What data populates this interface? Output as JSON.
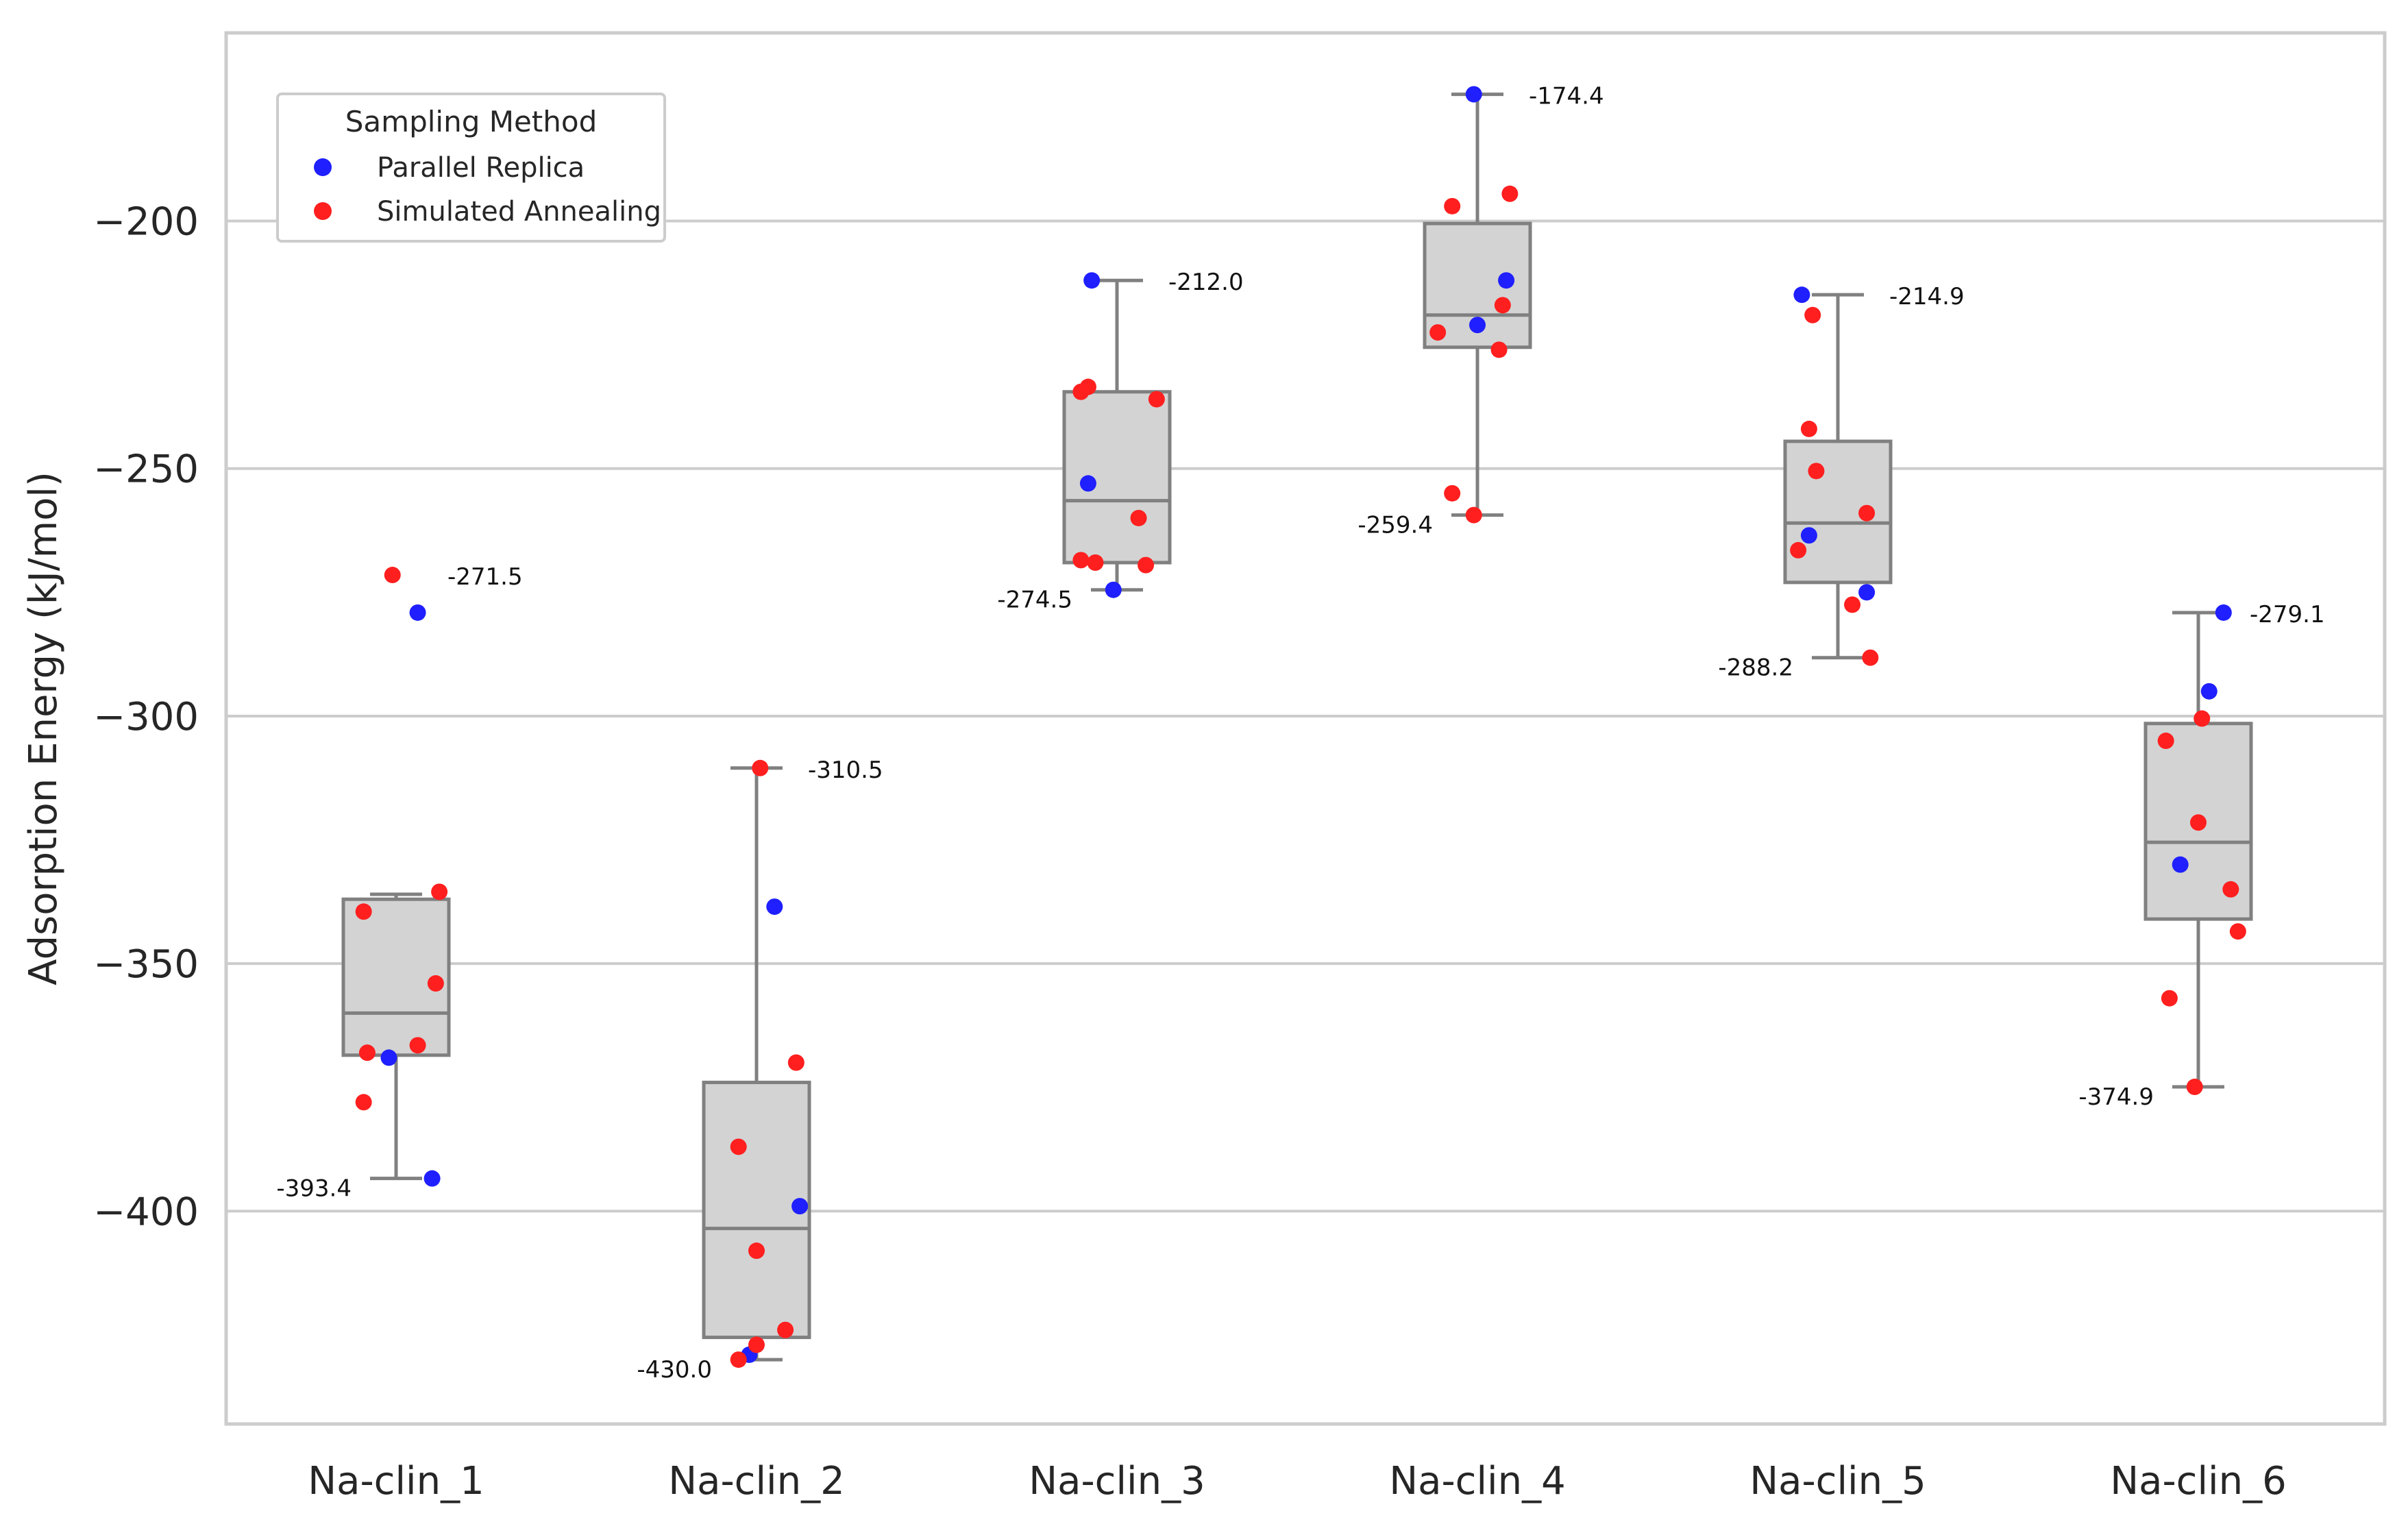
{
  "chart_data": {
    "type": "box",
    "title": "",
    "xlabel": "",
    "ylabel": "Adsorption Energy (kJ/mol)",
    "ylim": [
      -443,
      -162
    ],
    "yticks": [
      -200,
      -250,
      -300,
      -350,
      -400
    ],
    "ytick_labels": [
      "−200",
      "−250",
      "−300",
      "−350",
      "−400"
    ],
    "grid": "horizontal",
    "legend": {
      "title": "Sampling Method",
      "placement": "top-left",
      "entries": [
        {
          "name": "Parallel Replica",
          "color": "#1f1fff"
        },
        {
          "name": "Simulated Annealing",
          "color": "#ff1f1f"
        }
      ]
    },
    "categories": [
      "Na-clin_1",
      "Na-clin_2",
      "Na-clin_3",
      "Na-clin_4",
      "Na-clin_5",
      "Na-clin_6"
    ],
    "boxes": [
      {
        "category": "Na-clin_1",
        "q1": -368.5,
        "median": -360.0,
        "q3": -337.0,
        "whisker_low": -393.4,
        "whisker_high": -336.0,
        "max_label": "-271.5",
        "min_label": "-393.4"
      },
      {
        "category": "Na-clin_2",
        "q1": -425.5,
        "median": -403.5,
        "q3": -374.0,
        "whisker_low": -430.0,
        "whisker_high": -310.5,
        "max_label": "-310.5",
        "min_label": "-430.0"
      },
      {
        "category": "Na-clin_3",
        "q1": -269.0,
        "median": -256.5,
        "q3": -234.5,
        "whisker_low": -274.5,
        "whisker_high": -212.0,
        "max_label": "-212.0",
        "min_label": "-274.5"
      },
      {
        "category": "Na-clin_4",
        "q1": -225.5,
        "median": -219.0,
        "q3": -200.5,
        "whisker_low": -259.4,
        "whisker_high": -174.4,
        "max_label": "-174.4",
        "min_label": "-259.4"
      },
      {
        "category": "Na-clin_5",
        "q1": -273.0,
        "median": -261.0,
        "q3": -244.5,
        "whisker_low": -288.2,
        "whisker_high": -214.9,
        "max_label": "-214.9",
        "min_label": "-288.2"
      },
      {
        "category": "Na-clin_6",
        "q1": -341.0,
        "median": -325.5,
        "q3": -301.5,
        "whisker_low": -374.9,
        "whisker_high": -279.1,
        "max_label": "-279.1",
        "min_label": "-374.9"
      }
    ],
    "series": [
      {
        "name": "Parallel Replica",
        "color": "#1f1fff",
        "points": [
          {
            "category": "Na-clin_1",
            "offset": 0.06,
            "value": -279.1
          },
          {
            "category": "Na-clin_1",
            "offset": -0.02,
            "value": -369.0
          },
          {
            "category": "Na-clin_1",
            "offset": 0.1,
            "value": -393.4
          },
          {
            "category": "Na-clin_2",
            "offset": 0.05,
            "value": -338.5
          },
          {
            "category": "Na-clin_2",
            "offset": 0.12,
            "value": -399.0
          },
          {
            "category": "Na-clin_2",
            "offset": -0.02,
            "value": -429.0
          },
          {
            "category": "Na-clin_3",
            "offset": -0.07,
            "value": -212.0
          },
          {
            "category": "Na-clin_3",
            "offset": -0.08,
            "value": -253.0
          },
          {
            "category": "Na-clin_3",
            "offset": -0.01,
            "value": -274.5
          },
          {
            "category": "Na-clin_4",
            "offset": -0.01,
            "value": -174.4
          },
          {
            "category": "Na-clin_4",
            "offset": 0.08,
            "value": -212.0
          },
          {
            "category": "Na-clin_4",
            "offset": 0.0,
            "value": -221.0
          },
          {
            "category": "Na-clin_5",
            "offset": -0.1,
            "value": -214.9
          },
          {
            "category": "Na-clin_5",
            "offset": -0.08,
            "value": -263.5
          },
          {
            "category": "Na-clin_5",
            "offset": 0.08,
            "value": -275.0
          },
          {
            "category": "Na-clin_6",
            "offset": 0.07,
            "value": -279.1
          },
          {
            "category": "Na-clin_6",
            "offset": 0.03,
            "value": -295.0
          },
          {
            "category": "Na-clin_6",
            "offset": -0.05,
            "value": -330.0
          }
        ]
      },
      {
        "name": "Simulated Annealing",
        "color": "#ff1f1f",
        "points": [
          {
            "category": "Na-clin_1",
            "offset": -0.01,
            "value": -271.5
          },
          {
            "category": "Na-clin_1",
            "offset": 0.12,
            "value": -335.5
          },
          {
            "category": "Na-clin_1",
            "offset": -0.09,
            "value": -339.5
          },
          {
            "category": "Na-clin_1",
            "offset": 0.11,
            "value": -354.0
          },
          {
            "category": "Na-clin_1",
            "offset": 0.06,
            "value": -366.5
          },
          {
            "category": "Na-clin_1",
            "offset": -0.08,
            "value": -368.0
          },
          {
            "category": "Na-clin_1",
            "offset": -0.09,
            "value": -378.0
          },
          {
            "category": "Na-clin_2",
            "offset": 0.01,
            "value": -310.5
          },
          {
            "category": "Na-clin_2",
            "offset": 0.11,
            "value": -370.0
          },
          {
            "category": "Na-clin_2",
            "offset": -0.05,
            "value": -387.0
          },
          {
            "category": "Na-clin_2",
            "offset": 0.0,
            "value": -408.0
          },
          {
            "category": "Na-clin_2",
            "offset": 0.08,
            "value": -424.0
          },
          {
            "category": "Na-clin_2",
            "offset": 0.0,
            "value": -427.0
          },
          {
            "category": "Na-clin_2",
            "offset": -0.05,
            "value": -430.0
          },
          {
            "category": "Na-clin_3",
            "offset": -0.08,
            "value": -233.5
          },
          {
            "category": "Na-clin_3",
            "offset": -0.1,
            "value": -234.5
          },
          {
            "category": "Na-clin_3",
            "offset": 0.11,
            "value": -236.0
          },
          {
            "category": "Na-clin_3",
            "offset": 0.06,
            "value": -260.0
          },
          {
            "category": "Na-clin_3",
            "offset": -0.1,
            "value": -268.5
          },
          {
            "category": "Na-clin_3",
            "offset": -0.06,
            "value": -269.0
          },
          {
            "category": "Na-clin_3",
            "offset": 0.08,
            "value": -269.5
          },
          {
            "category": "Na-clin_4",
            "offset": 0.09,
            "value": -194.5
          },
          {
            "category": "Na-clin_4",
            "offset": -0.07,
            "value": -197.0
          },
          {
            "category": "Na-clin_4",
            "offset": 0.07,
            "value": -217.0
          },
          {
            "category": "Na-clin_4",
            "offset": -0.11,
            "value": -222.5
          },
          {
            "category": "Na-clin_4",
            "offset": 0.06,
            "value": -226.0
          },
          {
            "category": "Na-clin_4",
            "offset": -0.07,
            "value": -255.0
          },
          {
            "category": "Na-clin_4",
            "offset": -0.01,
            "value": -259.4
          },
          {
            "category": "Na-clin_5",
            "offset": -0.07,
            "value": -219.0
          },
          {
            "category": "Na-clin_5",
            "offset": -0.08,
            "value": -242.0
          },
          {
            "category": "Na-clin_5",
            "offset": -0.06,
            "value": -250.5
          },
          {
            "category": "Na-clin_5",
            "offset": 0.08,
            "value": -259.0
          },
          {
            "category": "Na-clin_5",
            "offset": -0.11,
            "value": -266.5
          },
          {
            "category": "Na-clin_5",
            "offset": 0.04,
            "value": -277.5
          },
          {
            "category": "Na-clin_5",
            "offset": 0.09,
            "value": -288.2
          },
          {
            "category": "Na-clin_6",
            "offset": 0.01,
            "value": -300.5
          },
          {
            "category": "Na-clin_6",
            "offset": -0.09,
            "value": -305.0
          },
          {
            "category": "Na-clin_6",
            "offset": 0.0,
            "value": -321.5
          },
          {
            "category": "Na-clin_6",
            "offset": 0.09,
            "value": -335.0
          },
          {
            "category": "Na-clin_6",
            "offset": 0.11,
            "value": -343.5
          },
          {
            "category": "Na-clin_6",
            "offset": -0.08,
            "value": -357.0
          },
          {
            "category": "Na-clin_6",
            "offset": -0.01,
            "value": -374.9
          }
        ]
      }
    ]
  }
}
